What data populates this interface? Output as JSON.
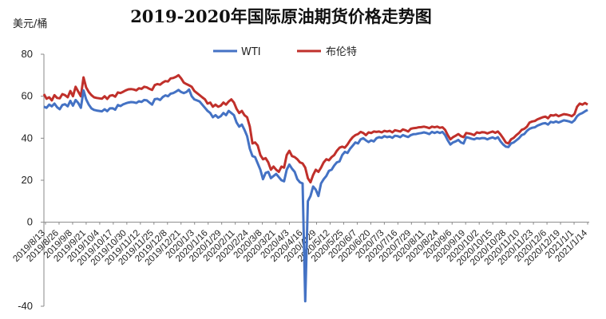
{
  "chart_data": {
    "type": "line",
    "title": "2019-2020年国际原油期货价格走势图",
    "unit_label": "美元/桶",
    "ylim": [
      -40,
      80
    ],
    "yticks": [
      -40,
      0,
      20,
      40,
      60,
      80
    ],
    "legend_position": "top-center",
    "grid": false,
    "x_labels": [
      "2019/8/13",
      "2019/8/26",
      "2019/9/8",
      "2019/9/21",
      "2019/10/4",
      "2019/10/17",
      "2019/10/30",
      "2019/11/12",
      "2019/11/25",
      "2019/12/8",
      "2019/12/21",
      "2020/1/3",
      "2020/1/16",
      "2020/1/29",
      "2020/2/11",
      "2020/2/24",
      "2020/3/8",
      "2020/3/21",
      "2020/4/3",
      "2020/4/16",
      "2020/4/29",
      "2020/5/12",
      "2020/5/25",
      "2020/6/7",
      "2020/6/20",
      "2020/7/3",
      "2020/7/16",
      "2020/7/29",
      "2020/8/11",
      "2020/8/24",
      "2020/9/6",
      "2020/9/19",
      "2020/10/2",
      "2020/10/15",
      "2020/10/28",
      "2020/11/10",
      "2020/11/23",
      "2020/12/6",
      "2020/12/19",
      "2021/1/1",
      "2021/1/14"
    ],
    "series": [
      {
        "name": "WTI",
        "color": "#4472c4",
        "values": [
          55.0,
          54.5,
          56.0,
          55.2,
          56.5,
          54.8,
          53.8,
          55.8,
          56.2,
          55.2,
          57.8,
          55.5,
          58.2,
          56.8,
          54.5,
          62.8,
          58.5,
          56.0,
          54.2,
          53.5,
          53.2,
          53.0,
          52.8,
          53.8,
          52.9,
          54.2,
          54.3,
          53.6,
          55.8,
          55.3,
          56.1,
          56.6,
          57.0,
          57.2,
          57.1,
          56.8,
          57.6,
          57.3,
          58.2,
          58.0,
          57.0,
          56.0,
          58.6,
          58.8,
          58.2,
          59.6,
          60.4,
          60.0,
          61.2,
          61.5,
          62.2,
          63.0,
          62.0,
          61.5,
          62.0,
          63.2,
          60.0,
          58.5,
          58.0,
          57.5,
          56.0,
          54.5,
          53.0,
          52.0,
          50.0,
          51.0,
          49.8,
          50.5,
          52.0,
          51.0,
          53.0,
          52.0,
          51.0,
          47.5,
          45.5,
          46.5,
          44.0,
          41.0,
          35.0,
          31.5,
          31.0,
          28.0,
          25.0,
          20.5,
          23.5,
          24.0,
          21.0,
          22.0,
          23.0,
          21.5,
          20.0,
          19.5,
          25.0,
          27.5,
          25.5,
          24.0,
          20.5,
          19.0,
          18.5,
          -37.6,
          10.0,
          12.5,
          17.0,
          15.5,
          12.5,
          18.5,
          20.5,
          22.0,
          24.5,
          25.0,
          27.0,
          28.5,
          29.0,
          32.0,
          33.5,
          33.0,
          35.0,
          36.5,
          38.0,
          37.5,
          39.5,
          40.0,
          39.0,
          38.2,
          39.0,
          38.5,
          40.0,
          40.5,
          40.2,
          41.0,
          40.5,
          40.8,
          40.2,
          41.2,
          41.0,
          40.5,
          41.5,
          41.0,
          40.6,
          41.5,
          41.9,
          42.0,
          42.3,
          42.5,
          42.8,
          42.5,
          42.0,
          43.0,
          42.5,
          43.0,
          42.5,
          43.0,
          41.5,
          39.0,
          37.0,
          38.0,
          38.5,
          39.2,
          38.0,
          37.5,
          40.5,
          40.2,
          39.8,
          39.5,
          40.0,
          39.8,
          40.1,
          40.0,
          39.5,
          40.0,
          40.4,
          39.8,
          40.5,
          38.5,
          37.0,
          36.0,
          35.8,
          37.5,
          38.0,
          39.0,
          40.0,
          41.5,
          42.0,
          43.5,
          44.5,
          45.0,
          45.2,
          46.0,
          46.5,
          47.0,
          47.2,
          46.5,
          47.8,
          47.5,
          48.0,
          47.5,
          48.0,
          48.5,
          48.3,
          48.0,
          47.5,
          48.5,
          50.5,
          51.5,
          52.0,
          52.8,
          53.5
        ]
      },
      {
        "name": "布伦特",
        "color": "#c0302b",
        "values": [
          61.0,
          58.8,
          59.5,
          58.0,
          60.5,
          59.2,
          59.0,
          61.0,
          60.5,
          59.5,
          62.5,
          60.0,
          64.5,
          62.2,
          60.0,
          69.0,
          64.2,
          62.0,
          60.5,
          59.5,
          59.2,
          59.0,
          58.8,
          60.0,
          58.7,
          60.2,
          60.5,
          59.8,
          61.8,
          61.5,
          62.1,
          62.8,
          63.3,
          63.4,
          63.2,
          62.8,
          63.8,
          63.5,
          64.5,
          64.2,
          63.5,
          63.0,
          65.3,
          65.8,
          65.5,
          66.5,
          67.2,
          67.0,
          68.5,
          68.7,
          69.2,
          70.0,
          68.5,
          66.5,
          65.8,
          65.2,
          64.5,
          62.5,
          61.5,
          60.5,
          59.5,
          58.5,
          56.5,
          57.0,
          55.0,
          56.0,
          55.0,
          55.5,
          57.0,
          56.0,
          57.5,
          58.5,
          57.0,
          54.0,
          52.0,
          53.0,
          51.0,
          50.0,
          45.5,
          37.5,
          38.0,
          36.5,
          32.0,
          30.0,
          30.5,
          28.5,
          25.0,
          26.5,
          25.0,
          24.0,
          26.5,
          26.0,
          32.0,
          34.0,
          31.5,
          31.0,
          30.0,
          28.5,
          28.0,
          26.0,
          21.0,
          19.0,
          22.5,
          25.0,
          24.0,
          26.0,
          28.5,
          30.0,
          29.5,
          31.0,
          32.0,
          34.0,
          35.5,
          36.0,
          35.5,
          37.0,
          39.0,
          40.5,
          41.5,
          42.0,
          43.0,
          42.5,
          41.5,
          42.8,
          42.5,
          43.2,
          43.0,
          43.2,
          42.8,
          43.5,
          43.2,
          43.5,
          42.8,
          43.8,
          43.5,
          43.2,
          44.2,
          43.8,
          43.2,
          44.5,
          44.8,
          44.9,
          45.2,
          45.3,
          45.5,
          45.2,
          44.8,
          45.5,
          45.2,
          45.5,
          45.0,
          45.2,
          44.0,
          41.5,
          39.5,
          40.5,
          41.2,
          42.0,
          41.0,
          40.5,
          42.5,
          42.3,
          42.0,
          41.5,
          42.8,
          42.5,
          42.9,
          42.8,
          42.3,
          42.8,
          43.2,
          42.6,
          43.2,
          41.8,
          40.0,
          38.0,
          37.5,
          39.5,
          40.2,
          41.5,
          42.5,
          44.0,
          44.5,
          45.5,
          47.5,
          48.0,
          48.2,
          49.0,
          49.5,
          50.0,
          50.3,
          49.5,
          51.0,
          50.8,
          51.2,
          50.5,
          51.0,
          51.5,
          51.3,
          51.0,
          50.5,
          51.5,
          55.0,
          56.5,
          56.0,
          56.8,
          56.0
        ]
      }
    ]
  }
}
